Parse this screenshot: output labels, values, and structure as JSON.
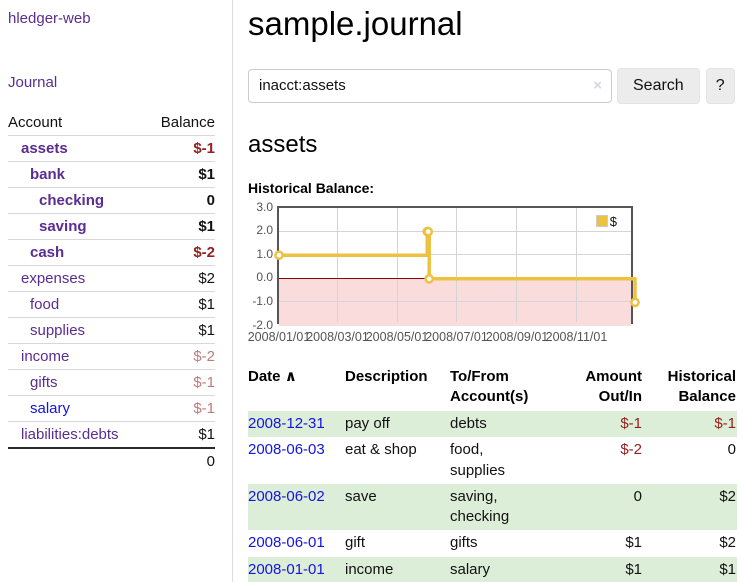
{
  "colors": {
    "link_purple": "#5b2d90",
    "link_blue": "#1414e0",
    "neg_strong": "#94201f",
    "neg_muted": "#bd7b7b",
    "row_green": "#ddeed8",
    "chart_line": "#edc240",
    "chart_neg_zone": "#fadcdc",
    "chart_zero": "#8b0000",
    "btn_bg": "#ececec"
  },
  "sidebar": {
    "app_title": "hledger-web",
    "nav_journal": "Journal",
    "accounts_table": {
      "headers": {
        "account": "Account",
        "balance": "Balance"
      },
      "rows": [
        {
          "account": "assets",
          "balance": "$-1",
          "indent": 1,
          "emphasis": true,
          "balance_color": "neg_strong",
          "account_color": "purple"
        },
        {
          "account": "bank",
          "balance": "$1",
          "indent": 2,
          "emphasis": true,
          "balance_color": "normal",
          "account_color": "purple"
        },
        {
          "account": "checking",
          "balance": "0",
          "indent": 3,
          "emphasis": true,
          "balance_color": "normal",
          "account_color": "purple"
        },
        {
          "account": "saving",
          "balance": "$1",
          "indent": 3,
          "emphasis": true,
          "balance_color": "normal",
          "account_color": "purple"
        },
        {
          "account": "cash",
          "balance": "$-2",
          "indent": 2,
          "emphasis": true,
          "balance_color": "neg_strong",
          "account_color": "purple"
        },
        {
          "account": "expenses",
          "balance": "$2",
          "indent": 1,
          "emphasis": false,
          "balance_color": "normal",
          "account_color": "purple"
        },
        {
          "account": "food",
          "balance": "$1",
          "indent": 2,
          "emphasis": false,
          "balance_color": "normal",
          "account_color": "purple"
        },
        {
          "account": "supplies",
          "balance": "$1",
          "indent": 2,
          "emphasis": false,
          "balance_color": "normal",
          "account_color": "purple"
        },
        {
          "account": "income",
          "balance": "$-2",
          "indent": 1,
          "emphasis": false,
          "balance_color": "neg_muted",
          "account_color": "purple"
        },
        {
          "account": "gifts",
          "balance": "$-1",
          "indent": 2,
          "emphasis": false,
          "balance_color": "neg_muted",
          "account_color": "purple"
        },
        {
          "account": "salary",
          "balance": "$-1",
          "indent": 2,
          "emphasis": false,
          "balance_color": "neg_muted",
          "account_color": "blue"
        },
        {
          "account": "liabilities:debts",
          "balance": "$1",
          "indent": 1,
          "emphasis": false,
          "balance_color": "normal",
          "account_color": "purple"
        }
      ],
      "total": "0"
    }
  },
  "main": {
    "journal_title": "sample.journal",
    "account_heading": "assets",
    "chart_heading": "Historical Balance:"
  },
  "search": {
    "value": "inacct:assets",
    "clear_icon": "×",
    "button_label": "Search",
    "help_label": "?"
  },
  "chart_data": {
    "type": "line",
    "style": "step",
    "title": "Historical Balance:",
    "legend": [
      {
        "name": "$",
        "color": "#edc240"
      }
    ],
    "legend_position": "top-right",
    "series": [
      {
        "name": "$",
        "points": [
          [
            "2008-01-01",
            1
          ],
          [
            "2008-06-01",
            2
          ],
          [
            "2008-06-02",
            2
          ],
          [
            "2008-06-03",
            0
          ],
          [
            "2008-12-31",
            -1
          ]
        ]
      }
    ],
    "xlim": [
      "2008-01-01",
      "2008-12-31"
    ],
    "ylim": [
      -2,
      3
    ],
    "y_ticks": [
      "3.0",
      "2.0",
      "1.0",
      "0.0",
      "-1.0",
      "-2.0"
    ],
    "x_ticks": [
      "2008/01/01",
      "2008/03/01",
      "2008/05/01",
      "2008/07/01",
      "2008/09/01",
      "2008/11/01"
    ],
    "grid": true,
    "negative_zone": true,
    "zero_line": true
  },
  "register": {
    "headers": {
      "date": "Date",
      "sort_icon": "∧",
      "description": "Description",
      "account": "To/From Account(s)",
      "amount": "Amount Out/In",
      "balance": "Historical Balance"
    },
    "rows": [
      {
        "date": "2008-12-31",
        "description": "pay off",
        "account": "debts",
        "amount": "$-1",
        "amount_neg": true,
        "balance": "$-1",
        "balance_neg": true
      },
      {
        "date": "2008-06-03",
        "description": "eat & shop",
        "account": "food, supplies",
        "amount": "$-2",
        "amount_neg": true,
        "balance": "0",
        "balance_neg": false
      },
      {
        "date": "2008-06-02",
        "description": "save",
        "account": "saving, checking",
        "amount": "0",
        "amount_neg": false,
        "balance": "$2",
        "balance_neg": false
      },
      {
        "date": "2008-06-01",
        "description": "gift",
        "account": "gifts",
        "amount": "$1",
        "amount_neg": false,
        "balance": "$2",
        "balance_neg": false
      },
      {
        "date": "2008-01-01",
        "description": "income",
        "account": "salary",
        "amount": "$1",
        "amount_neg": false,
        "balance": "$1",
        "balance_neg": false
      }
    ]
  }
}
